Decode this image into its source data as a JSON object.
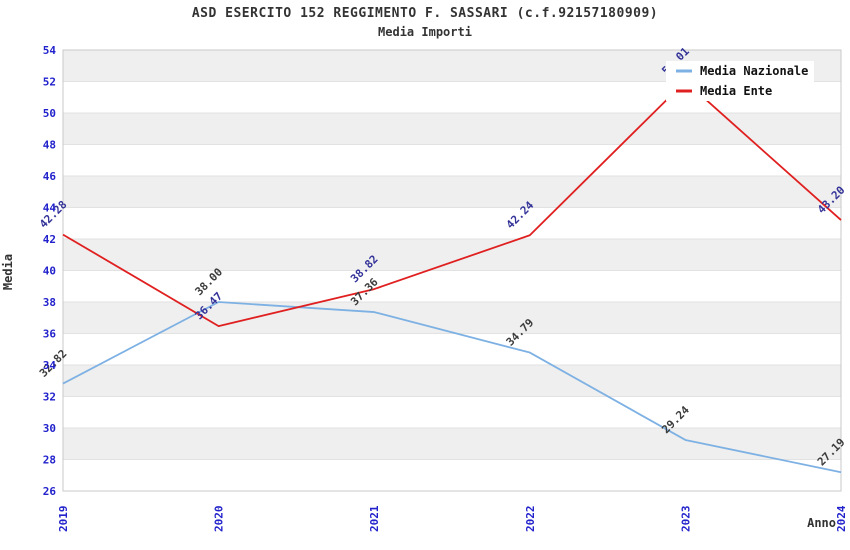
{
  "header": {
    "title": "ASD ESERCITO 152 REGGIMENTO F. SASSARI (c.f.92157180909)",
    "subtitle": "Media Importi"
  },
  "chart_data": {
    "type": "line",
    "title": "ASD ESERCITO 152 REGGIMENTO F. SASSARI (c.f.92157180909)",
    "subtitle": "Media Importi",
    "xlabel": "Anno",
    "ylabel": "Media",
    "categories": [
      "2019",
      "2020",
      "2021",
      "2022",
      "2023",
      "2024"
    ],
    "series": [
      {
        "name": "Media Nazionale",
        "color": "#7EB1E3",
        "label_color": "#3C3C3C",
        "values": [
          32.82,
          38.0,
          37.36,
          34.79,
          29.24,
          27.19
        ]
      },
      {
        "name": "Media Ente",
        "color": "#E02020",
        "label_color": "#333399",
        "values": [
          42.28,
          36.47,
          38.82,
          42.24,
          52.01,
          43.2
        ]
      }
    ],
    "ylim": [
      26,
      54
    ],
    "ytick_step": 2,
    "grid": "alternating-horizontal-bands",
    "legend_position": "top-right",
    "colors": {
      "band": "#EFEFEF",
      "gridline": "#E2E2E2",
      "plot_border": "#C8C8C8",
      "tick_label": "#2222CC",
      "axis_title": "#333333",
      "legend_text": "#111111",
      "legend_bg": "#FFFFFF"
    }
  }
}
